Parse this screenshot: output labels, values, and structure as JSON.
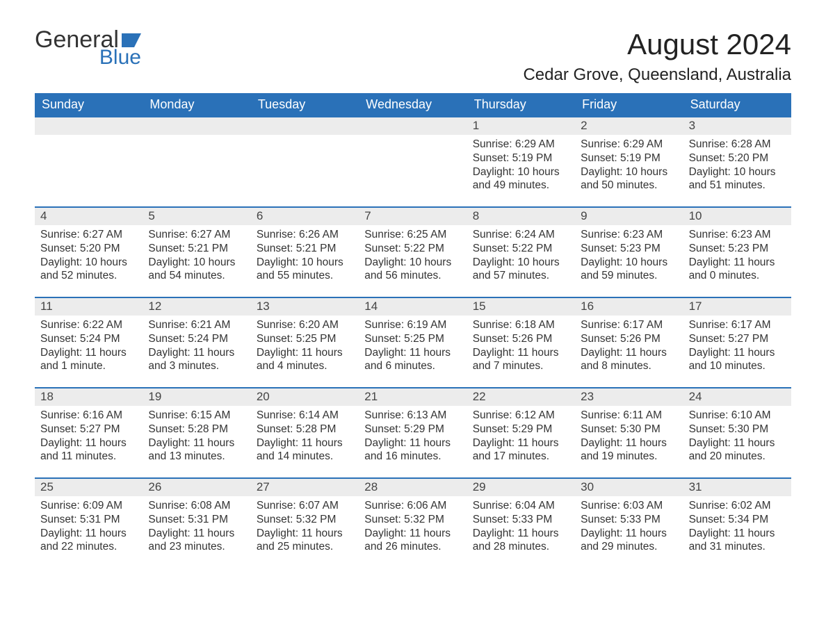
{
  "logo": {
    "text1": "General",
    "text2": "Blue",
    "flag_color": "#2a71b8"
  },
  "title": "August 2024",
  "location": "Cedar Grove, Queensland, Australia",
  "colors": {
    "header_bg": "#2a71b8",
    "header_text": "#ffffff",
    "daynum_bg": "#ececec",
    "row_border": "#2a71b8",
    "body_text": "#333333"
  },
  "weekdays": [
    "Sunday",
    "Monday",
    "Tuesday",
    "Wednesday",
    "Thursday",
    "Friday",
    "Saturday"
  ],
  "weeks": [
    [
      null,
      null,
      null,
      null,
      {
        "day": "1",
        "sunrise": "6:29 AM",
        "sunset": "5:19 PM",
        "daylight": "10 hours and 49 minutes."
      },
      {
        "day": "2",
        "sunrise": "6:29 AM",
        "sunset": "5:19 PM",
        "daylight": "10 hours and 50 minutes."
      },
      {
        "day": "3",
        "sunrise": "6:28 AM",
        "sunset": "5:20 PM",
        "daylight": "10 hours and 51 minutes."
      }
    ],
    [
      {
        "day": "4",
        "sunrise": "6:27 AM",
        "sunset": "5:20 PM",
        "daylight": "10 hours and 52 minutes."
      },
      {
        "day": "5",
        "sunrise": "6:27 AM",
        "sunset": "5:21 PM",
        "daylight": "10 hours and 54 minutes."
      },
      {
        "day": "6",
        "sunrise": "6:26 AM",
        "sunset": "5:21 PM",
        "daylight": "10 hours and 55 minutes."
      },
      {
        "day": "7",
        "sunrise": "6:25 AM",
        "sunset": "5:22 PM",
        "daylight": "10 hours and 56 minutes."
      },
      {
        "day": "8",
        "sunrise": "6:24 AM",
        "sunset": "5:22 PM",
        "daylight": "10 hours and 57 minutes."
      },
      {
        "day": "9",
        "sunrise": "6:23 AM",
        "sunset": "5:23 PM",
        "daylight": "10 hours and 59 minutes."
      },
      {
        "day": "10",
        "sunrise": "6:23 AM",
        "sunset": "5:23 PM",
        "daylight": "11 hours and 0 minutes."
      }
    ],
    [
      {
        "day": "11",
        "sunrise": "6:22 AM",
        "sunset": "5:24 PM",
        "daylight": "11 hours and 1 minute."
      },
      {
        "day": "12",
        "sunrise": "6:21 AM",
        "sunset": "5:24 PM",
        "daylight": "11 hours and 3 minutes."
      },
      {
        "day": "13",
        "sunrise": "6:20 AM",
        "sunset": "5:25 PM",
        "daylight": "11 hours and 4 minutes."
      },
      {
        "day": "14",
        "sunrise": "6:19 AM",
        "sunset": "5:25 PM",
        "daylight": "11 hours and 6 minutes."
      },
      {
        "day": "15",
        "sunrise": "6:18 AM",
        "sunset": "5:26 PM",
        "daylight": "11 hours and 7 minutes."
      },
      {
        "day": "16",
        "sunrise": "6:17 AM",
        "sunset": "5:26 PM",
        "daylight": "11 hours and 8 minutes."
      },
      {
        "day": "17",
        "sunrise": "6:17 AM",
        "sunset": "5:27 PM",
        "daylight": "11 hours and 10 minutes."
      }
    ],
    [
      {
        "day": "18",
        "sunrise": "6:16 AM",
        "sunset": "5:27 PM",
        "daylight": "11 hours and 11 minutes."
      },
      {
        "day": "19",
        "sunrise": "6:15 AM",
        "sunset": "5:28 PM",
        "daylight": "11 hours and 13 minutes."
      },
      {
        "day": "20",
        "sunrise": "6:14 AM",
        "sunset": "5:28 PM",
        "daylight": "11 hours and 14 minutes."
      },
      {
        "day": "21",
        "sunrise": "6:13 AM",
        "sunset": "5:29 PM",
        "daylight": "11 hours and 16 minutes."
      },
      {
        "day": "22",
        "sunrise": "6:12 AM",
        "sunset": "5:29 PM",
        "daylight": "11 hours and 17 minutes."
      },
      {
        "day": "23",
        "sunrise": "6:11 AM",
        "sunset": "5:30 PM",
        "daylight": "11 hours and 19 minutes."
      },
      {
        "day": "24",
        "sunrise": "6:10 AM",
        "sunset": "5:30 PM",
        "daylight": "11 hours and 20 minutes."
      }
    ],
    [
      {
        "day": "25",
        "sunrise": "6:09 AM",
        "sunset": "5:31 PM",
        "daylight": "11 hours and 22 minutes."
      },
      {
        "day": "26",
        "sunrise": "6:08 AM",
        "sunset": "5:31 PM",
        "daylight": "11 hours and 23 minutes."
      },
      {
        "day": "27",
        "sunrise": "6:07 AM",
        "sunset": "5:32 PM",
        "daylight": "11 hours and 25 minutes."
      },
      {
        "day": "28",
        "sunrise": "6:06 AM",
        "sunset": "5:32 PM",
        "daylight": "11 hours and 26 minutes."
      },
      {
        "day": "29",
        "sunrise": "6:04 AM",
        "sunset": "5:33 PM",
        "daylight": "11 hours and 28 minutes."
      },
      {
        "day": "30",
        "sunrise": "6:03 AM",
        "sunset": "5:33 PM",
        "daylight": "11 hours and 29 minutes."
      },
      {
        "day": "31",
        "sunrise": "6:02 AM",
        "sunset": "5:34 PM",
        "daylight": "11 hours and 31 minutes."
      }
    ]
  ],
  "labels": {
    "sunrise": "Sunrise: ",
    "sunset": "Sunset: ",
    "daylight": "Daylight: "
  }
}
